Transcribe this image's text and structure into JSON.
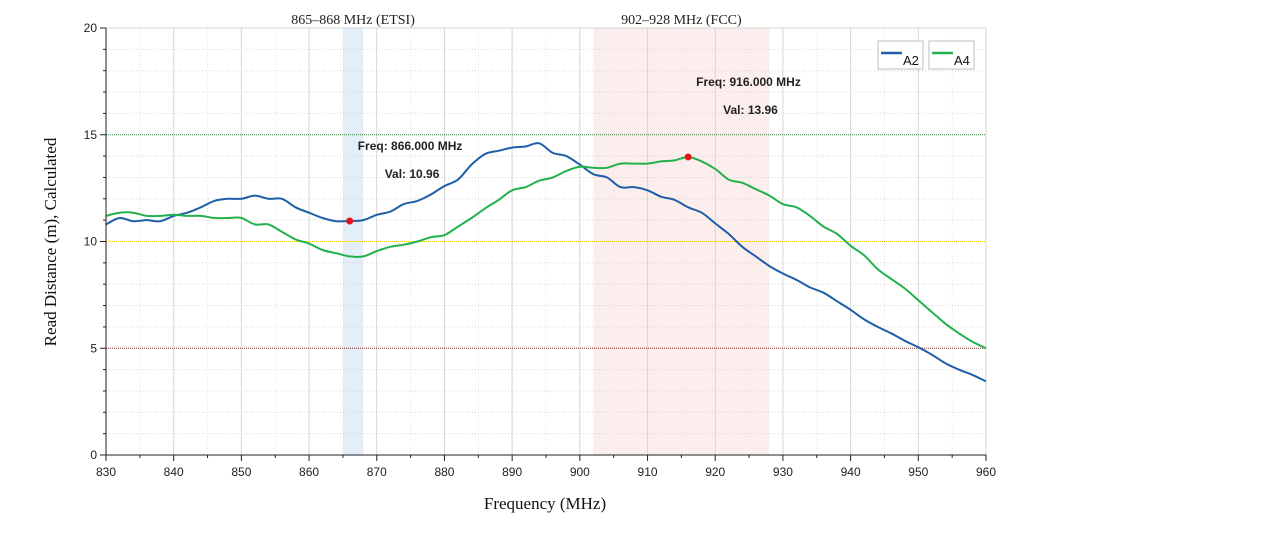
{
  "chart_data": {
    "type": "line",
    "title": "",
    "xlabel": "Frequency (MHz)",
    "ylabel": "Read  Distance (m),  Calculated",
    "xlim": [
      830,
      960
    ],
    "ylim": [
      0,
      20
    ],
    "x_ticks": [
      830,
      840,
      850,
      860,
      870,
      880,
      890,
      900,
      910,
      920,
      930,
      940,
      950,
      960
    ],
    "y_ticks": [
      0,
      5,
      10,
      15,
      20
    ],
    "grid": true,
    "legend_position": "top-right",
    "bands": [
      {
        "label": "865–868 MHz (ETSI)",
        "from": 865,
        "to": 868,
        "color": "#e3eef8"
      },
      {
        "label": "902–928 MHz (FCC)",
        "from": 902,
        "to": 928,
        "color": "#fdeeee"
      }
    ],
    "reference_lines": [
      {
        "y": 15,
        "color": "#2e7d32"
      },
      {
        "y": 10,
        "color": "#e0c000"
      },
      {
        "y": 5,
        "color": "#8b2a2a"
      }
    ],
    "series": [
      {
        "name": "A2",
        "color": "#1f5fa8",
        "x": [
          830,
          832,
          834,
          836,
          838,
          840,
          842,
          844,
          846,
          848,
          850,
          852,
          854,
          856,
          858,
          860,
          862,
          864,
          866,
          868,
          870,
          872,
          874,
          876,
          878,
          880,
          882,
          884,
          886,
          888,
          890,
          892,
          894,
          896,
          898,
          900,
          902,
          904,
          906,
          908,
          910,
          912,
          914,
          916,
          918,
          920,
          922,
          924,
          926,
          928,
          930,
          932,
          934,
          936,
          938,
          940,
          942,
          944,
          946,
          948,
          950,
          952,
          954,
          956,
          958,
          960
        ],
        "y": [
          10.8,
          11.1,
          10.95,
          11.0,
          10.95,
          11.2,
          11.35,
          11.6,
          11.9,
          12.0,
          12.0,
          12.15,
          12.0,
          12.0,
          11.6,
          11.35,
          11.1,
          10.95,
          10.96,
          11.0,
          11.25,
          11.4,
          11.75,
          11.9,
          12.2,
          12.6,
          12.9,
          13.6,
          14.1,
          14.25,
          14.4,
          14.45,
          14.6,
          14.15,
          14.0,
          13.6,
          13.15,
          13.0,
          12.55,
          12.55,
          12.4,
          12.1,
          11.95,
          11.6,
          11.35,
          10.85,
          10.35,
          9.75,
          9.3,
          8.85,
          8.5,
          8.2,
          7.85,
          7.6,
          7.2,
          6.8,
          6.35,
          6.0,
          5.7,
          5.35,
          5.05,
          4.7,
          4.3,
          4.0,
          3.75,
          3.45
        ]
      },
      {
        "name": "A4",
        "color": "#22b14c",
        "x": [
          830,
          832,
          834,
          836,
          838,
          840,
          842,
          844,
          846,
          848,
          850,
          852,
          854,
          856,
          858,
          860,
          862,
          864,
          866,
          868,
          870,
          872,
          874,
          876,
          878,
          880,
          882,
          884,
          886,
          888,
          890,
          892,
          894,
          896,
          898,
          900,
          902,
          904,
          906,
          908,
          910,
          912,
          914,
          916,
          918,
          920,
          922,
          924,
          926,
          928,
          930,
          932,
          934,
          936,
          938,
          940,
          942,
          944,
          946,
          948,
          950,
          952,
          954,
          956,
          958,
          960
        ],
        "y": [
          11.2,
          11.35,
          11.35,
          11.2,
          11.2,
          11.25,
          11.2,
          11.2,
          11.1,
          11.1,
          11.1,
          10.8,
          10.8,
          10.45,
          10.1,
          9.9,
          9.6,
          9.45,
          9.3,
          9.3,
          9.55,
          9.75,
          9.85,
          10.0,
          10.2,
          10.3,
          10.7,
          11.1,
          11.55,
          11.95,
          12.4,
          12.55,
          12.85,
          13.0,
          13.3,
          13.5,
          13.45,
          13.45,
          13.65,
          13.65,
          13.65,
          13.75,
          13.8,
          13.96,
          13.75,
          13.4,
          12.9,
          12.75,
          12.45,
          12.15,
          11.75,
          11.6,
          11.2,
          10.7,
          10.35,
          9.8,
          9.35,
          8.7,
          8.25,
          7.8,
          7.25,
          6.7,
          6.15,
          5.7,
          5.3,
          5.0
        ]
      }
    ],
    "annotations": [
      {
        "series": "A2",
        "freq_text": "Freq:  866.000 MHz",
        "val_text": "Val: 10.96",
        "x": 866,
        "y": 10.96
      },
      {
        "series": "A4",
        "freq_text": "Freq:  916.000 MHz",
        "val_text": "Val: 13.96",
        "x": 916,
        "y": 13.96
      }
    ],
    "marker_color": "#e8141c"
  }
}
